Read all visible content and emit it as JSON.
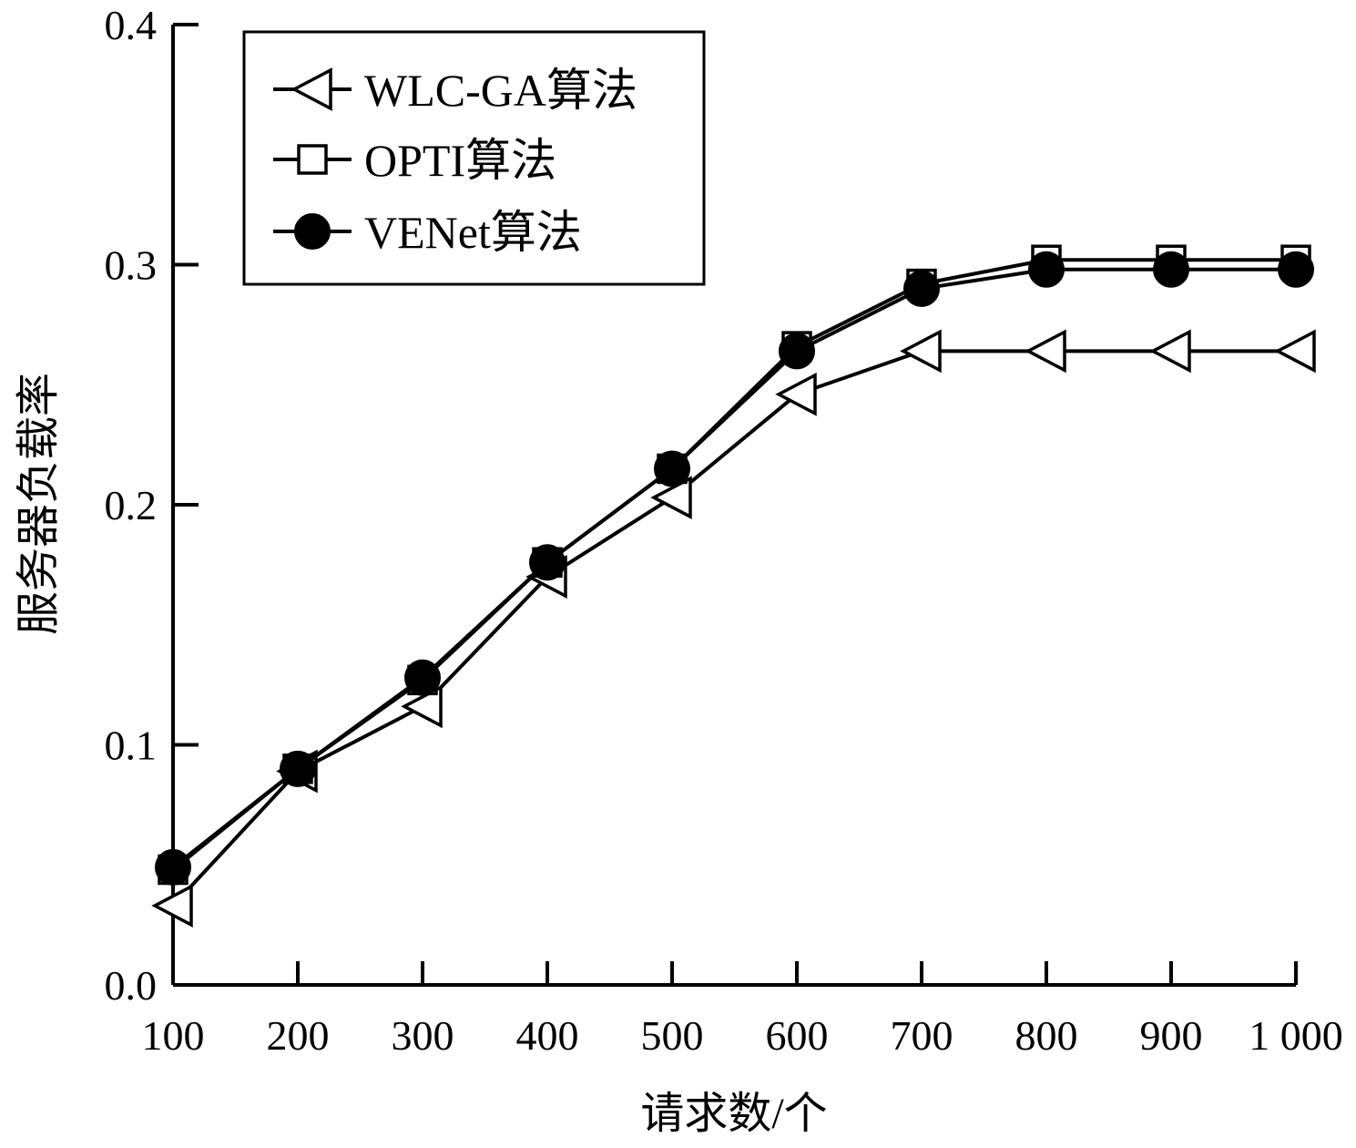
{
  "chart_data": {
    "type": "line",
    "title": "",
    "xlabel": "请求数/个",
    "ylabel": "服务器负载率",
    "categories": [
      "100",
      "200",
      "300",
      "400",
      "500",
      "600",
      "700",
      "800",
      "900",
      "1 000"
    ],
    "x": [
      100,
      200,
      300,
      400,
      500,
      600,
      700,
      800,
      900,
      1000
    ],
    "xlim": [
      100,
      1000
    ],
    "ylim": [
      0,
      0.4
    ],
    "yticks": [
      "0.0",
      "0.1",
      "0.2",
      "0.3",
      "0.4"
    ],
    "grid": false,
    "legend_position": "top-left",
    "series": [
      {
        "name": "WLC-GA算法",
        "marker": "triangle-left-open",
        "color": "#000000",
        "values": [
          0.033,
          0.089,
          0.116,
          0.17,
          0.203,
          0.246,
          0.264,
          0.264,
          0.264,
          0.264
        ]
      },
      {
        "name": "OPTI算法",
        "marker": "square-open",
        "color": "#000000",
        "values": [
          0.048,
          0.09,
          0.127,
          0.176,
          0.215,
          0.266,
          0.292,
          0.302,
          0.302,
          0.302
        ]
      },
      {
        "name": "VENet算法",
        "marker": "circle-filled",
        "color": "#000000",
        "values": [
          0.049,
          0.09,
          0.128,
          0.176,
          0.215,
          0.264,
          0.29,
          0.298,
          0.298,
          0.298
        ]
      }
    ]
  }
}
